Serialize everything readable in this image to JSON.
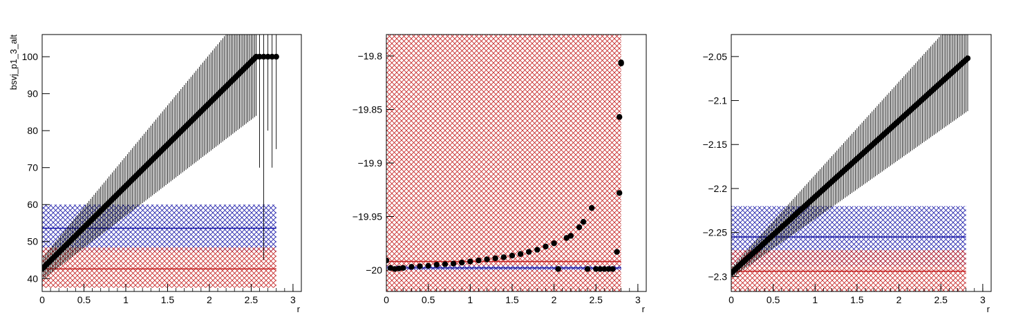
{
  "chart_data": [
    {
      "type": "scatter",
      "xlabel": "r",
      "ylabel": "bsvj_p1_3_alt",
      "xlim": [
        0,
        3.1
      ],
      "ylim": [
        36.5,
        106
      ],
      "x_ticks": [
        "0",
        "0.5",
        "1",
        "1.5",
        "2",
        "2.5",
        "3"
      ],
      "y_ticks": [
        "40",
        "50",
        "60",
        "70",
        "80",
        "90",
        "100"
      ],
      "series": [
        {
          "x_start": 0,
          "x_end": 2.56,
          "y_start": 42.6,
          "y_end": 100,
          "err_start": 3,
          "err_end": 16
        },
        {
          "x": [
            2.6,
            2.65,
            2.7,
            2.75,
            2.8
          ],
          "y": [
            100,
            100,
            100,
            100,
            100
          ],
          "err": [
            30,
            55,
            20,
            30,
            25
          ]
        }
      ],
      "bands": [
        {
          "color": "#1a1aa8",
          "center": 53.6,
          "low": 47.3,
          "high": 60,
          "x_max": 2.8
        },
        {
          "color": "#c42121",
          "center": 42.6,
          "low": 37.5,
          "high": 48.4,
          "x_max": 2.8
        }
      ],
      "colors": {
        "points": "#000000",
        "band_blue": "#1a1aa8",
        "band_red": "#c42121"
      }
    },
    {
      "type": "scatter",
      "xlabel": "r",
      "ylabel": "",
      "xlim": [
        0,
        3.1
      ],
      "ylim": [
        -20.02,
        -19.78
      ],
      "x_ticks": [
        "0",
        "0.5",
        "1",
        "1.5",
        "2",
        "2.5",
        "3"
      ],
      "y_ticks": [
        "−20",
        "−19.95",
        "−19.9",
        "−19.85",
        "−19.8"
      ],
      "y_tick_values": [
        -20,
        -19.95,
        -19.9,
        -19.85,
        -19.8
      ],
      "series": [
        {
          "x": [
            0,
            0.05,
            0.1,
            0.15,
            0.2,
            0.3,
            0.4,
            0.5,
            0.6,
            0.7,
            0.8,
            0.9,
            1.0,
            1.1,
            1.2,
            1.3,
            1.4,
            1.5,
            1.6,
            1.7,
            1.8,
            1.9,
            2.0,
            2.05,
            2.15,
            2.2,
            2.3,
            2.35,
            2.4,
            2.45,
            2.5,
            2.55,
            2.6,
            2.65,
            2.7,
            2.75,
            2.78,
            2.8
          ],
          "y": [
            -19.991,
            -19.998,
            -19.999,
            -19.9985,
            -19.998,
            -19.997,
            -19.9965,
            -19.996,
            -19.995,
            -19.9945,
            -19.994,
            -19.993,
            -19.992,
            -19.991,
            -19.99,
            -19.989,
            -19.988,
            -19.9865,
            -19.985,
            -19.983,
            -19.981,
            -19.978,
            -19.975,
            -19.999,
            -19.97,
            -19.968,
            -19.96,
            -19.955,
            -19.999,
            -19.942,
            -19.999,
            -19.999,
            -19.999,
            -19.999,
            -19.999,
            -19.983,
            -19.928,
            -19.807
          ]
        },
        {
          "x": [
            2.78,
            2.8
          ],
          "y": [
            -19.857,
            -19.806
          ]
        }
      ],
      "bands": [
        {
          "color": "#c42121",
          "center": -19.992,
          "low": -20.02,
          "high": -19.78,
          "x_max": 2.8
        },
        {
          "color": "#1a1aa8",
          "center": -19.998,
          "low": -20.0,
          "high": -19.996,
          "x_max": 2.8
        }
      ],
      "colors": {
        "points": "#000000",
        "band_blue": "#1a1aa8",
        "band_red": "#c42121"
      }
    },
    {
      "type": "scatter",
      "xlabel": "r",
      "ylabel": "",
      "xlim": [
        0,
        3.1
      ],
      "ylim": [
        -2.317,
        -2.025
      ],
      "x_ticks": [
        "0",
        "0.5",
        "1",
        "1.5",
        "2",
        "2.5",
        "3"
      ],
      "y_ticks": [
        "−2.3",
        "−2.25",
        "−2.2",
        "−2.15",
        "−2.1",
        "−2.05"
      ],
      "y_tick_values": [
        -2.3,
        -2.25,
        -2.2,
        -2.15,
        -2.1,
        -2.05
      ],
      "series": [
        {
          "x_start": 0,
          "x_end": 2.82,
          "y_start": -2.296,
          "y_end": -2.052,
          "err_start": 0.006,
          "err_end": 0.06
        }
      ],
      "bands": [
        {
          "color": "#1a1aa8",
          "center": -2.255,
          "low": -2.288,
          "high": -2.22,
          "x_max": 2.8
        },
        {
          "color": "#c42121",
          "center": -2.294,
          "low": -2.317,
          "high": -2.27,
          "x_max": 2.8
        }
      ],
      "colors": {
        "points": "#000000",
        "band_blue": "#1a1aa8",
        "band_red": "#c42121"
      }
    }
  ]
}
